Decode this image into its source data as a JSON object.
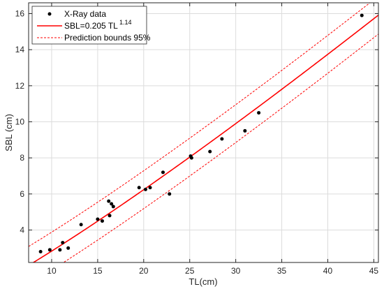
{
  "chart_data": {
    "type": "scatter",
    "title": "",
    "xlabel": "TL(cm)",
    "ylabel": "SBL (cm)",
    "xlim": [
      7.5,
      45.5
    ],
    "ylim": [
      2.2,
      16.6
    ],
    "xticks": [
      10,
      15,
      20,
      25,
      30,
      35,
      40,
      45
    ],
    "yticks": [
      4,
      6,
      8,
      10,
      12,
      14,
      16
    ],
    "grid": true,
    "legend_position": "top-left",
    "colors": {
      "points": "#000000",
      "fit": "#ff0000",
      "bounds": "#ff0000",
      "grid": "#dcdcdc",
      "axis": "#262626"
    },
    "legend": {
      "points": "X-Ray data",
      "fit_prefix": "SBL=0.205 TL",
      "fit_exponent": "1.14",
      "bounds": "Prediction bounds 95%"
    },
    "series": [
      {
        "type": "scatter",
        "x": [
          8.8,
          9.8,
          10.9,
          11.2,
          11.8,
          13.2,
          15.0,
          15.5,
          16.2,
          16.3,
          16.5,
          16.7,
          19.5,
          20.2,
          20.7,
          22.1,
          22.8,
          25.1,
          25.2,
          27.2,
          28.5,
          31.0,
          32.5,
          43.7
        ],
        "y": [
          2.8,
          2.9,
          2.9,
          3.3,
          3.0,
          4.3,
          4.6,
          4.5,
          5.6,
          4.8,
          5.45,
          5.3,
          6.35,
          6.25,
          6.35,
          7.2,
          6.0,
          8.1,
          8.0,
          8.35,
          9.05,
          9.5,
          10.5,
          15.9
        ]
      },
      {
        "type": "line",
        "coef": 0.205,
        "exponent": 1.14
      },
      {
        "type": "line",
        "style": "dashed",
        "offset": 1.05
      }
    ]
  }
}
